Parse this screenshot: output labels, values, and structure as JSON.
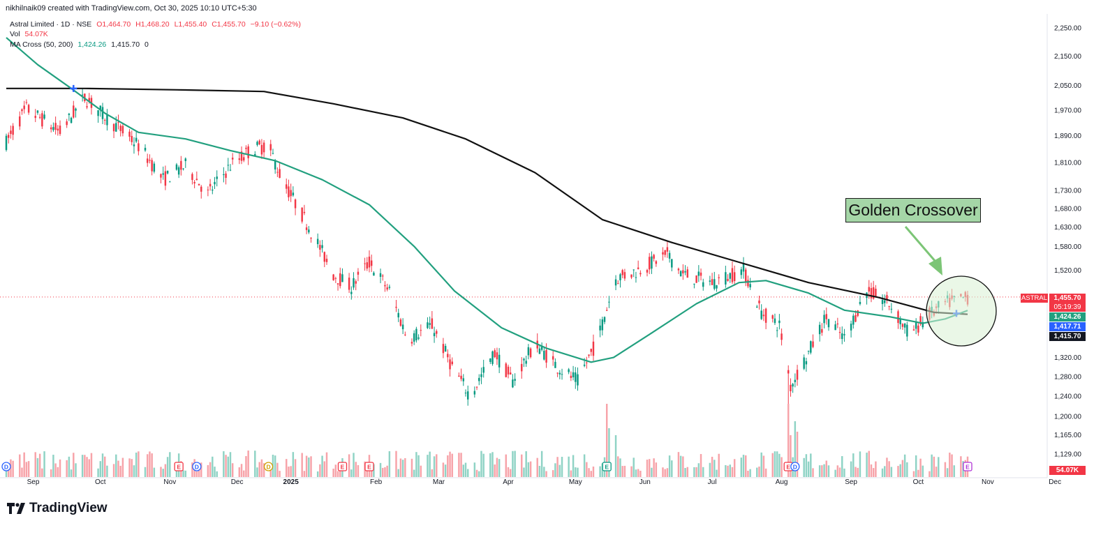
{
  "header": {
    "created_by": "nikhilnaik09 created with TradingView.com, Oct 30, 2025 10:10 UTC+5:30"
  },
  "legend": {
    "symbol": "Astral Limited · 1D · NSE",
    "open": "O1,464.70",
    "high": "H1,468.20",
    "low": "L1,455.40",
    "close": "C1,455.70",
    "change": "−9.10 (−0.62%)",
    "vol_label": "Vol",
    "vol_value": "54.07K",
    "ma_label": "MA Cross (50, 200)",
    "ma_fast": "1,424.26",
    "ma_slow": "1,415.70",
    "ma_zero": "0"
  },
  "annotation": {
    "text": "Golden Crossover"
  },
  "price_tags": {
    "symbol": "ASTRAL",
    "last": "1,455.70",
    "countdown": "05:19:39",
    "ma_fast": "1,424.26",
    "ma_mid": "1,417.71",
    "ma_slow": "1,415.70",
    "vol": "54.07K"
  },
  "brand": {
    "name": "TradingView"
  },
  "colors": {
    "up": "#089981",
    "down": "#f23645",
    "vol_up": "#8fd3c5",
    "vol_down": "#f7a3a9",
    "ma_fast": "#22a07f",
    "ma_slow": "#111111",
    "annotation_fill": "#a5d6a7",
    "circle_fill": "#d9f0d3",
    "arrow": "#7cc576",
    "cross_marker": "#2962ff"
  },
  "events": {
    "earnings": [
      "Oct",
      "Aug"
    ],
    "dividends": [
      "Nov",
      "Aug"
    ],
    "icons": [
      "E",
      "D",
      "E",
      "D",
      "E",
      "E",
      "E",
      "D",
      "E"
    ]
  },
  "chart_data": {
    "type": "candlestick",
    "symbol": "ASTRAL",
    "exchange": "NSE",
    "timeframe": "1D",
    "x_labels": [
      "Sep",
      "Oct",
      "Nov",
      "Dec",
      "2025",
      "Feb",
      "Mar",
      "Apr",
      "May",
      "Jun",
      "Jul",
      "Aug",
      "Sep",
      "Oct",
      "Nov",
      "Dec"
    ],
    "y_ticks": [
      2250,
      2150,
      2050,
      1970,
      1890,
      1810,
      1730,
      1680,
      1630,
      1580,
      1520,
      1455.7,
      1415.7,
      1320,
      1280,
      1240,
      1200,
      1165,
      1129
    ],
    "y_tick_labels": [
      "2,250.00",
      "2,150.00",
      "2,050.00",
      "1,970.00",
      "1,890.00",
      "1,810.00",
      "1,730.00",
      "1,680.00",
      "1,630.00",
      "1,580.00",
      "1,520.00",
      "1,320.00",
      "1,280.00",
      "1,240.00",
      "1,200.00",
      "1,165.00",
      "1,129.00"
    ],
    "price_scale": "log",
    "price_path": [
      [
        "2024-08-27",
        1870
      ],
      [
        "2024-09-05",
        1975
      ],
      [
        "2024-09-20",
        1900
      ],
      [
        "2024-10-01",
        2010
      ],
      [
        "2024-10-10",
        1950
      ],
      [
        "2024-10-25",
        1860
      ],
      [
        "2024-11-05",
        1760
      ],
      [
        "2024-11-15",
        1800
      ],
      [
        "2024-11-25",
        1720
      ],
      [
        "2024-12-05",
        1800
      ],
      [
        "2024-12-15",
        1850
      ],
      [
        "2024-12-22",
        1860
      ],
      [
        "2024-12-28",
        1760
      ],
      [
        "2025-01-10",
        1620
      ],
      [
        "2025-01-20",
        1510
      ],
      [
        "2025-01-28",
        1480
      ],
      [
        "2025-02-05",
        1540
      ],
      [
        "2025-02-14",
        1470
      ],
      [
        "2025-02-22",
        1360
      ],
      [
        "2025-03-05",
        1390
      ],
      [
        "2025-03-14",
        1300
      ],
      [
        "2025-03-22",
        1240
      ],
      [
        "2025-04-02",
        1330
      ],
      [
        "2025-04-10",
        1270
      ],
      [
        "2025-04-20",
        1350
      ],
      [
        "2025-04-30",
        1300
      ],
      [
        "2025-05-09",
        1270
      ],
      [
        "2025-05-18",
        1360
      ],
      [
        "2025-05-26",
        1500
      ],
      [
        "2025-06-05",
        1520
      ],
      [
        "2025-06-18",
        1560
      ],
      [
        "2025-06-25",
        1510
      ],
      [
        "2025-07-08",
        1490
      ],
      [
        "2025-07-22",
        1520
      ],
      [
        "2025-07-30",
        1420
      ],
      [
        "2025-08-07",
        1390
      ],
      [
        "2025-08-12",
        1260
      ],
      [
        "2025-08-20",
        1330
      ],
      [
        "2025-08-28",
        1410
      ],
      [
        "2025-09-05",
        1360
      ],
      [
        "2025-09-15",
        1470
      ],
      [
        "2025-09-25",
        1440
      ],
      [
        "2025-10-04",
        1370
      ],
      [
        "2025-10-12",
        1410
      ],
      [
        "2025-10-20",
        1440
      ],
      [
        "2025-10-30",
        1455.7
      ]
    ],
    "last": {
      "open": 1464.7,
      "high": 1468.2,
      "low": 1455.4,
      "close": 1455.7,
      "change": -9.1,
      "change_pct": -0.62,
      "volume": "54.07K"
    },
    "series": [
      {
        "name": "MA Cross (50, 200)",
        "period": 50,
        "last": 1424.26
      },
      {
        "name": "MA Cross (50, 200)",
        "period": 200,
        "last": 1415.7
      }
    ],
    "ma50_path": [
      [
        "2024-08-27",
        2215
      ],
      [
        "2024-09-10",
        2120
      ],
      [
        "2024-09-25",
        2040
      ],
      [
        "2024-10-10",
        1960
      ],
      [
        "2024-10-25",
        1900
      ],
      [
        "2024-11-15",
        1880
      ],
      [
        "2024-12-05",
        1845
      ],
      [
        "2024-12-25",
        1815
      ],
      [
        "2025-01-15",
        1760
      ],
      [
        "2025-02-05",
        1690
      ],
      [
        "2025-02-25",
        1580
      ],
      [
        "2025-03-15",
        1470
      ],
      [
        "2025-04-05",
        1385
      ],
      [
        "2025-04-25",
        1340
      ],
      [
        "2025-05-15",
        1310
      ],
      [
        "2025-05-25",
        1320
      ],
      [
        "2025-06-10",
        1370
      ],
      [
        "2025-07-01",
        1440
      ],
      [
        "2025-07-20",
        1490
      ],
      [
        "2025-08-01",
        1495
      ],
      [
        "2025-08-20",
        1465
      ],
      [
        "2025-09-05",
        1425
      ],
      [
        "2025-09-25",
        1410
      ],
      [
        "2025-10-10",
        1395
      ],
      [
        "2025-10-20",
        1405
      ],
      [
        "2025-10-30",
        1424.26
      ]
    ],
    "ma200_path": [
      [
        "2024-08-27",
        2040
      ],
      [
        "2024-10-01",
        2040
      ],
      [
        "2024-11-15",
        2035
      ],
      [
        "2024-12-20",
        2030
      ],
      [
        "2025-01-20",
        1990
      ],
      [
        "2025-02-20",
        1945
      ],
      [
        "2025-03-20",
        1880
      ],
      [
        "2025-04-20",
        1780
      ],
      [
        "2025-05-20",
        1650
      ],
      [
        "2025-06-20",
        1590
      ],
      [
        "2025-07-20",
        1540
      ],
      [
        "2025-08-20",
        1490
      ],
      [
        "2025-09-20",
        1455
      ],
      [
        "2025-10-15",
        1420
      ],
      [
        "2025-10-30",
        1415.7
      ]
    ],
    "crossovers": [
      {
        "date": "2024-09-26",
        "type": "death",
        "price": 2040
      },
      {
        "date": "2025-10-25",
        "type": "golden",
        "price": 1417.71
      }
    ],
    "volume_peaks": [
      [
        "2025-05-22",
        "large"
      ],
      [
        "2025-08-12",
        "very large"
      ],
      [
        "2025-08-15",
        "large"
      ]
    ],
    "grid": false,
    "legend_position": "top-left"
  }
}
